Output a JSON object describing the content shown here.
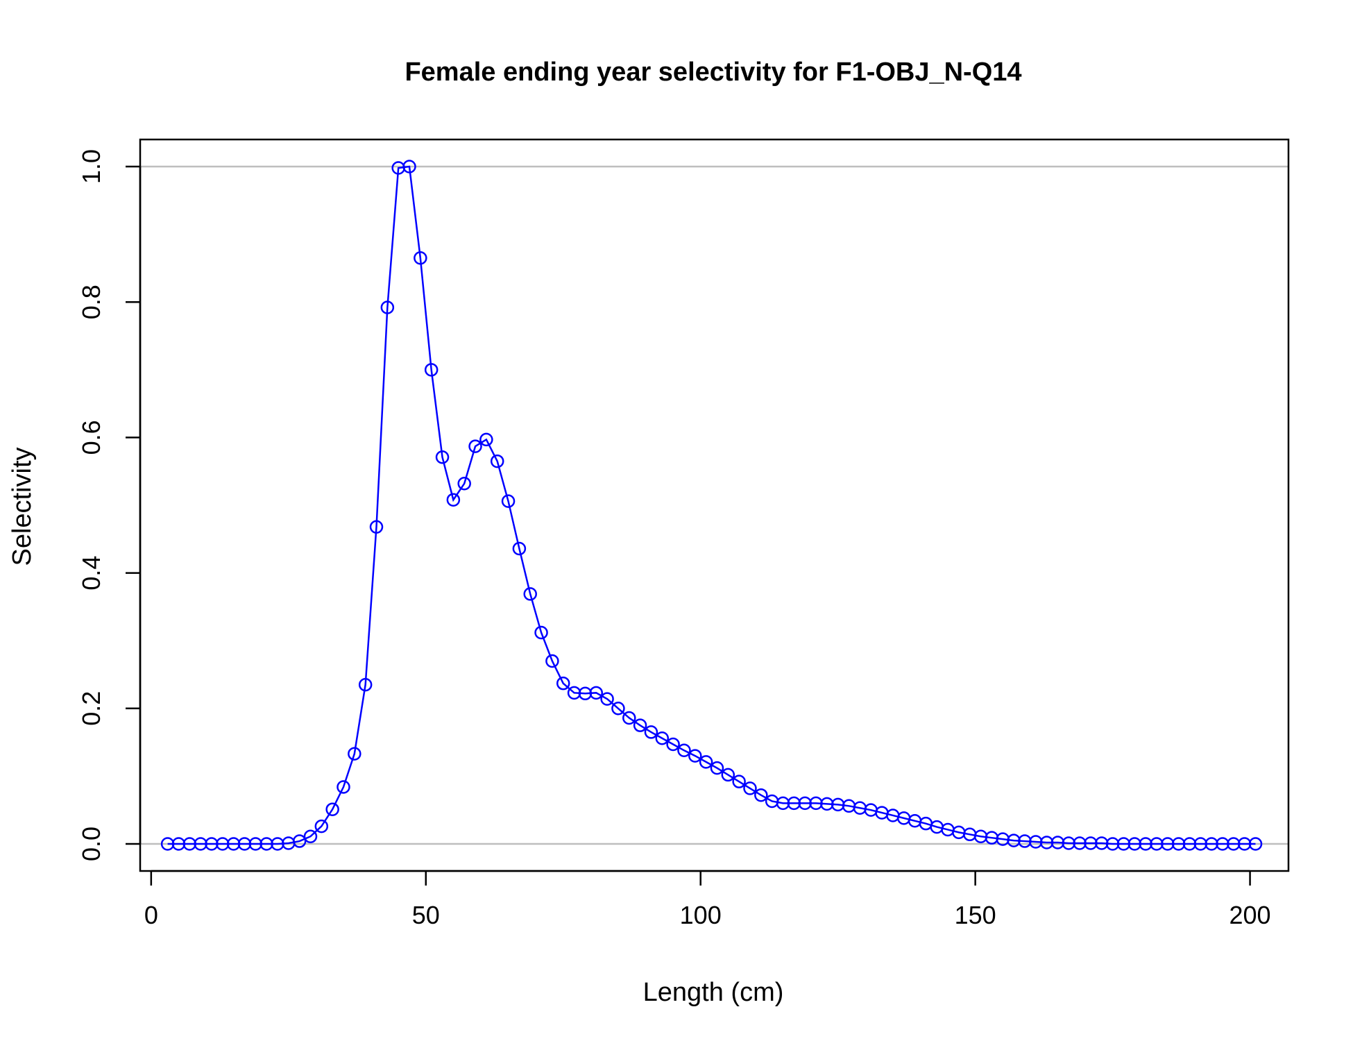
{
  "chart_data": {
    "type": "line",
    "title": "Female ending year selectivity for F1-OBJ_N-Q14",
    "xlabel": "Length (cm)",
    "ylabel": "Selectivity",
    "xlim": [
      -2,
      207
    ],
    "ylim": [
      -0.04,
      1.04
    ],
    "xticks": [
      {
        "value": 0,
        "label": "0"
      },
      {
        "value": 50,
        "label": "50"
      },
      {
        "value": 100,
        "label": "100"
      },
      {
        "value": 150,
        "label": "150"
      },
      {
        "value": 200,
        "label": "200"
      }
    ],
    "yticks": [
      {
        "value": 0,
        "label": "0.0"
      },
      {
        "value": 0.2,
        "label": "0.2"
      },
      {
        "value": 0.4,
        "label": "0.4"
      },
      {
        "value": 0.6,
        "label": "0.6"
      },
      {
        "value": 0.8,
        "label": "0.8"
      },
      {
        "value": 1.0,
        "label": "1.0"
      }
    ],
    "reference_lines_y": [
      0,
      1
    ],
    "grid": false,
    "colors": {
      "series": "#0000ff",
      "reference_line": "#bebebe",
      "axis": "#000000"
    },
    "series": [
      {
        "marker": "open-circle",
        "x": [
          3,
          5,
          7,
          9,
          11,
          13,
          15,
          17,
          19,
          21,
          23,
          25,
          27,
          29,
          31,
          33,
          35,
          37,
          39,
          41,
          43,
          45,
          47,
          49,
          51,
          53,
          55,
          57,
          59,
          61,
          63,
          65,
          67,
          69,
          71,
          73,
          75,
          77,
          79,
          81,
          83,
          85,
          87,
          89,
          91,
          93,
          95,
          97,
          99,
          101,
          103,
          105,
          107,
          109,
          111,
          113,
          115,
          117,
          119,
          121,
          123,
          125,
          127,
          129,
          131,
          133,
          135,
          137,
          139,
          141,
          143,
          145,
          147,
          149,
          151,
          153,
          155,
          157,
          159,
          161,
          163,
          165,
          167,
          169,
          171,
          173,
          175,
          177,
          179,
          181,
          183,
          185,
          187,
          189,
          191,
          193,
          195,
          197,
          199,
          201
        ],
        "y": [
          0,
          0,
          0,
          0,
          0,
          0,
          0,
          0,
          0,
          0,
          0,
          0.001,
          0.004,
          0.011,
          0.026,
          0.051,
          0.084,
          0.133,
          0.235,
          0.468,
          0.792,
          0.998,
          1.0,
          0.865,
          0.7,
          0.571,
          0.508,
          0.532,
          0.587,
          0.597,
          0.565,
          0.506,
          0.436,
          0.369,
          0.312,
          0.27,
          0.237,
          0.223,
          0.222,
          0.223,
          0.214,
          0.2,
          0.186,
          0.175,
          0.165,
          0.156,
          0.147,
          0.138,
          0.13,
          0.121,
          0.112,
          0.102,
          0.092,
          0.082,
          0.072,
          0.063,
          0.06,
          0.06,
          0.06,
          0.06,
          0.059,
          0.058,
          0.056,
          0.053,
          0.05,
          0.046,
          0.042,
          0.038,
          0.034,
          0.03,
          0.025,
          0.021,
          0.017,
          0.014,
          0.011,
          0.009,
          0.007,
          0.005,
          0.004,
          0.003,
          0.002,
          0.002,
          0.001,
          0.001,
          0.001,
          0.001,
          0,
          0,
          0,
          0,
          0,
          0,
          0,
          0,
          0,
          0,
          0,
          0,
          0,
          0
        ]
      }
    ]
  }
}
